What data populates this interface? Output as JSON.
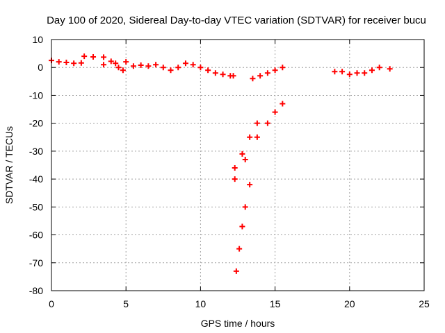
{
  "chart_data": {
    "type": "scatter",
    "title": "Day 100 of 2020, Sidereal Day-to-day VTEC variation (SDTVAR) for receiver bucu",
    "xlabel": "GPS time / hours",
    "ylabel": "SDTVAR / TECUs",
    "xlim": [
      0,
      25
    ],
    "ylim": [
      -80,
      10
    ],
    "x_ticks": [
      0,
      5,
      10,
      15,
      20,
      25
    ],
    "y_ticks": [
      -80,
      -70,
      -60,
      -50,
      -40,
      -30,
      -20,
      -10,
      0,
      10
    ],
    "grid": true,
    "marker": "plus",
    "color": "#ff0000",
    "series": [
      {
        "values": [
          {
            "x": 0.0,
            "y": 2.5
          },
          {
            "x": 0.5,
            "y": 2.0
          },
          {
            "x": 1.0,
            "y": 1.8
          },
          {
            "x": 1.5,
            "y": 1.5
          },
          {
            "x": 2.0,
            "y": 1.6
          },
          {
            "x": 2.2,
            "y": 4.0
          },
          {
            "x": 2.8,
            "y": 3.8
          },
          {
            "x": 3.5,
            "y": 3.7
          },
          {
            "x": 3.5,
            "y": 1.0
          },
          {
            "x": 4.0,
            "y": 2.2
          },
          {
            "x": 4.3,
            "y": 1.5
          },
          {
            "x": 4.5,
            "y": 0.0
          },
          {
            "x": 4.8,
            "y": -1.0
          },
          {
            "x": 5.0,
            "y": 2.0
          },
          {
            "x": 5.5,
            "y": 0.5
          },
          {
            "x": 6.0,
            "y": 0.8
          },
          {
            "x": 6.5,
            "y": 0.5
          },
          {
            "x": 7.0,
            "y": 1.0
          },
          {
            "x": 7.5,
            "y": 0.0
          },
          {
            "x": 8.0,
            "y": -1.0
          },
          {
            "x": 8.5,
            "y": 0.0
          },
          {
            "x": 9.0,
            "y": 1.5
          },
          {
            "x": 9.5,
            "y": 1.0
          },
          {
            "x": 10.0,
            "y": 0.0
          },
          {
            "x": 10.5,
            "y": -1.0
          },
          {
            "x": 11.0,
            "y": -2.0
          },
          {
            "x": 11.5,
            "y": -2.5
          },
          {
            "x": 12.0,
            "y": -3.0
          },
          {
            "x": 12.2,
            "y": -3.0
          },
          {
            "x": 12.3,
            "y": -36.0
          },
          {
            "x": 12.8,
            "y": -31.0
          },
          {
            "x": 13.3,
            "y": -25.0
          },
          {
            "x": 13.8,
            "y": -20.0
          },
          {
            "x": 12.3,
            "y": -40.0
          },
          {
            "x": 13.0,
            "y": -33.0
          },
          {
            "x": 13.8,
            "y": -25.0
          },
          {
            "x": 14.5,
            "y": -20.0
          },
          {
            "x": 15.0,
            "y": -16.0
          },
          {
            "x": 15.5,
            "y": -13.0
          },
          {
            "x": 12.4,
            "y": -73.0
          },
          {
            "x": 12.6,
            "y": -65.0
          },
          {
            "x": 12.8,
            "y": -57.0
          },
          {
            "x": 13.0,
            "y": -50.0
          },
          {
            "x": 13.3,
            "y": -42.0
          },
          {
            "x": 13.5,
            "y": -4.0
          },
          {
            "x": 14.0,
            "y": -3.0
          },
          {
            "x": 14.5,
            "y": -2.0
          },
          {
            "x": 15.0,
            "y": -1.0
          },
          {
            "x": 15.5,
            "y": 0.0
          },
          {
            "x": 19.0,
            "y": -1.5
          },
          {
            "x": 19.5,
            "y": -1.5
          },
          {
            "x": 20.0,
            "y": -2.5
          },
          {
            "x": 20.5,
            "y": -2.0
          },
          {
            "x": 21.0,
            "y": -2.0
          },
          {
            "x": 21.5,
            "y": -1.0
          },
          {
            "x": 22.0,
            "y": 0.0
          },
          {
            "x": 22.7,
            "y": -0.5
          }
        ]
      }
    ]
  }
}
